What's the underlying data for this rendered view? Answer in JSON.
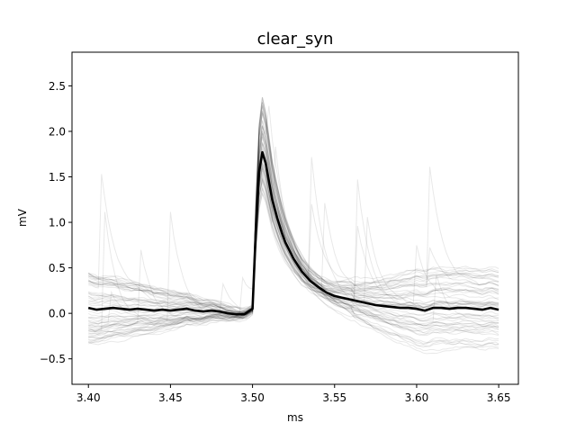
{
  "chart_data": {
    "type": "line",
    "title": "clear_syn",
    "xlabel": "ms",
    "ylabel": "mV",
    "xlim": [
      3.39,
      3.662
    ],
    "ylim": [
      -0.78,
      2.87
    ],
    "x_ticks": [
      3.4,
      3.45,
      3.5,
      3.55,
      3.6,
      3.65
    ],
    "x_tick_labels": [
      "3.40",
      "3.45",
      "3.50",
      "3.55",
      "3.60",
      "3.65"
    ],
    "y_ticks": [
      -0.5,
      0.0,
      0.5,
      1.0,
      1.5,
      2.0,
      2.5
    ],
    "y_tick_labels": [
      "−0.5",
      "0.0",
      "0.5",
      "1.0",
      "1.5",
      "2.0",
      "2.5"
    ],
    "grid": false,
    "legend": "none",
    "colors": {
      "mean": "#000000",
      "trials": "#000000"
    },
    "trial_count": 60,
    "series": [
      {
        "role": "mean",
        "x": [
          3.4,
          3.405,
          3.41,
          3.415,
          3.42,
          3.425,
          3.43,
          3.435,
          3.44,
          3.445,
          3.45,
          3.455,
          3.46,
          3.465,
          3.47,
          3.475,
          3.48,
          3.485,
          3.49,
          3.495,
          3.5,
          3.502,
          3.504,
          3.506,
          3.508,
          3.51,
          3.512,
          3.515,
          3.518,
          3.52,
          3.525,
          3.53,
          3.535,
          3.54,
          3.545,
          3.55,
          3.555,
          3.56,
          3.565,
          3.57,
          3.575,
          3.58,
          3.585,
          3.59,
          3.595,
          3.6,
          3.605,
          3.61,
          3.615,
          3.62,
          3.625,
          3.63,
          3.635,
          3.64,
          3.645,
          3.65
        ],
        "values": [
          0.06,
          0.04,
          0.05,
          0.06,
          0.05,
          0.04,
          0.05,
          0.04,
          0.03,
          0.04,
          0.03,
          0.04,
          0.05,
          0.03,
          0.02,
          0.03,
          0.02,
          0.0,
          -0.01,
          -0.01,
          0.05,
          0.9,
          1.55,
          1.77,
          1.65,
          1.45,
          1.25,
          1.05,
          0.88,
          0.78,
          0.6,
          0.46,
          0.36,
          0.29,
          0.23,
          0.19,
          0.17,
          0.15,
          0.13,
          0.11,
          0.09,
          0.08,
          0.07,
          0.06,
          0.06,
          0.05,
          0.03,
          0.06,
          0.06,
          0.05,
          0.06,
          0.06,
          0.05,
          0.04,
          0.06,
          0.04
        ]
      }
    ]
  }
}
